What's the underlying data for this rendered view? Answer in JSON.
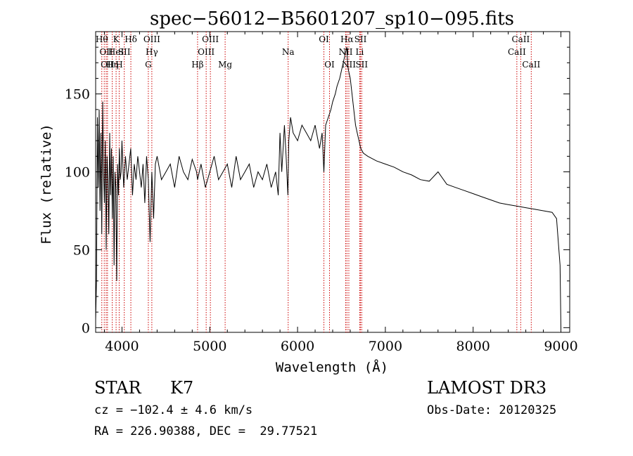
{
  "chart_data": {
    "type": "line",
    "title": "spec−56012−B5601207_sp10−095.fits",
    "xlabel": "Wavelength (Å)",
    "ylabel": "Flux (relative)",
    "xlim": [
      3700,
      9100
    ],
    "ylim": [
      -3,
      190
    ],
    "x_ticks": [
      4000,
      5000,
      6000,
      7000,
      8000,
      9000
    ],
    "y_ticks": [
      0,
      50,
      100,
      150
    ],
    "line_color": "#000000",
    "marker_color": "#cc0000",
    "series": [
      {
        "name": "flux",
        "x": [
          3700,
          3710,
          3720,
          3730,
          3740,
          3750,
          3760,
          3770,
          3780,
          3790,
          3800,
          3810,
          3820,
          3830,
          3840,
          3850,
          3860,
          3870,
          3880,
          3890,
          3900,
          3910,
          3920,
          3930,
          3940,
          3950,
          3960,
          3970,
          3980,
          3990,
          4000,
          4020,
          4040,
          4060,
          4080,
          4100,
          4120,
          4140,
          4160,
          4180,
          4200,
          4220,
          4240,
          4260,
          4280,
          4300,
          4320,
          4340,
          4360,
          4380,
          4400,
          4450,
          4500,
          4550,
          4600,
          4650,
          4700,
          4750,
          4800,
          4850,
          4861,
          4900,
          4950,
          5000,
          5050,
          5100,
          5150,
          5200,
          5250,
          5300,
          5350,
          5400,
          5450,
          5500,
          5550,
          5600,
          5650,
          5700,
          5750,
          5780,
          5800,
          5820,
          5850,
          5870,
          5890,
          5900,
          5920,
          5950,
          6000,
          6050,
          6100,
          6150,
          6200,
          6250,
          6280,
          6300,
          6320,
          6350,
          6380,
          6400,
          6430,
          6450,
          6480,
          6500,
          6520,
          6540,
          6560,
          6570,
          6580,
          6600,
          6620,
          6640,
          6660,
          6680,
          6700,
          6720,
          6750,
          6800,
          6900,
          7000,
          7100,
          7200,
          7300,
          7400,
          7500,
          7600,
          7700,
          7800,
          7900,
          8000,
          8100,
          8200,
          8300,
          8400,
          8500,
          8600,
          8700,
          8800,
          8900,
          8950,
          8990,
          9000
        ],
        "y": [
          5,
          30,
          135,
          90,
          140,
          75,
          125,
          60,
          145,
          100,
          80,
          120,
          50,
          110,
          95,
          60,
          125,
          85,
          115,
          70,
          110,
          40,
          100,
          90,
          30,
          105,
          85,
          115,
          95,
          100,
          120,
          90,
          110,
          95,
          105,
          115,
          85,
          105,
          95,
          110,
          100,
          90,
          105,
          80,
          110,
          95,
          55,
          100,
          70,
          105,
          110,
          95,
          100,
          105,
          90,
          110,
          100,
          95,
          108,
          100,
          95,
          105,
          90,
          100,
          110,
          95,
          100,
          105,
          90,
          110,
          95,
          100,
          105,
          90,
          100,
          95,
          105,
          90,
          100,
          85,
          125,
          100,
          130,
          110,
          85,
          120,
          135,
          125,
          120,
          130,
          125,
          120,
          130,
          115,
          125,
          100,
          130,
          135,
          140,
          145,
          150,
          155,
          160,
          165,
          170,
          175,
          180,
          170,
          165,
          160,
          150,
          140,
          130,
          125,
          120,
          115,
          112,
          110,
          107,
          105,
          103,
          100,
          98,
          95,
          94,
          100,
          92,
          90,
          88,
          86,
          84,
          82,
          80,
          79,
          78,
          77,
          76,
          75,
          74,
          70,
          40,
          0
        ]
      }
    ],
    "lines": [
      {
        "x": 3770,
        "labels": [
          {
            "row": 1,
            "text": "Hθ"
          }
        ]
      },
      {
        "x": 3798
      },
      {
        "x": 3820,
        "labels": [
          {
            "row": 2,
            "text": "OII"
          }
        ]
      },
      {
        "x": 3835,
        "labels": [
          {
            "row": 3,
            "text": "OII"
          }
        ]
      },
      {
        "x": 3889,
        "labels": [
          {
            "row": 3,
            "text": "Hη"
          }
        ]
      },
      {
        "x": 3933,
        "labels": [
          {
            "row": 1,
            "text": "K"
          },
          {
            "row": 2,
            "text": "HeI"
          }
        ]
      },
      {
        "x": 3968,
        "labels": [
          {
            "row": 3,
            "text": "H"
          }
        ]
      },
      {
        "x": 4026,
        "labels": [
          {
            "row": 2,
            "text": "SII"
          }
        ]
      },
      {
        "x": 4101,
        "labels": [
          {
            "row": 1,
            "text": "Hδ"
          }
        ]
      },
      {
        "x": 4300,
        "labels": [
          {
            "row": 3,
            "text": "G"
          }
        ]
      },
      {
        "x": 4340,
        "labels": [
          {
            "row": 1,
            "text": "OIII"
          },
          {
            "row": 2,
            "text": "Hγ"
          }
        ]
      },
      {
        "x": 4861,
        "labels": [
          {
            "row": 3,
            "text": "Hβ"
          }
        ]
      },
      {
        "x": 4959,
        "labels": [
          {
            "row": 2,
            "text": "OIII"
          }
        ]
      },
      {
        "x": 5007,
        "labels": [
          {
            "row": 1,
            "text": "OIII"
          }
        ]
      },
      {
        "x": 5175,
        "labels": [
          {
            "row": 3,
            "text": "Mg"
          }
        ]
      },
      {
        "x": 5893,
        "labels": [
          {
            "row": 2,
            "text": "Na"
          }
        ]
      },
      {
        "x": 6300,
        "labels": [
          {
            "row": 1,
            "text": "OI"
          }
        ]
      },
      {
        "x": 6364,
        "labels": [
          {
            "row": 3,
            "text": "OI"
          }
        ]
      },
      {
        "x": 6548,
        "labels": [
          {
            "row": 2,
            "text": "NII"
          }
        ]
      },
      {
        "x": 6563,
        "labels": [
          {
            "row": 1,
            "text": "Hα"
          }
        ]
      },
      {
        "x": 6584,
        "labels": [
          {
            "row": 3,
            "text": "NII"
          }
        ]
      },
      {
        "x": 6708,
        "labels": [
          {
            "row": 2,
            "text": "Li"
          }
        ]
      },
      {
        "x": 6717,
        "labels": [
          {
            "row": 1,
            "text": "SII"
          }
        ]
      },
      {
        "x": 6731,
        "labels": [
          {
            "row": 3,
            "text": "SII"
          }
        ]
      },
      {
        "x": 8498,
        "labels": [
          {
            "row": 2,
            "text": "CaII"
          }
        ]
      },
      {
        "x": 8542,
        "labels": [
          {
            "row": 1,
            "text": "CaII"
          }
        ]
      },
      {
        "x": 8662,
        "labels": [
          {
            "row": 3,
            "text": "CaII"
          }
        ]
      }
    ]
  },
  "info": {
    "object_class": "STAR",
    "subclass": "K7",
    "survey": "LAMOST DR3",
    "cz": "cz = −102.4 ± 4.6 km/s",
    "obs_date": "Obs-Date: 20120325",
    "coords": "RA = 226.90388, DEC =  29.77521"
  }
}
